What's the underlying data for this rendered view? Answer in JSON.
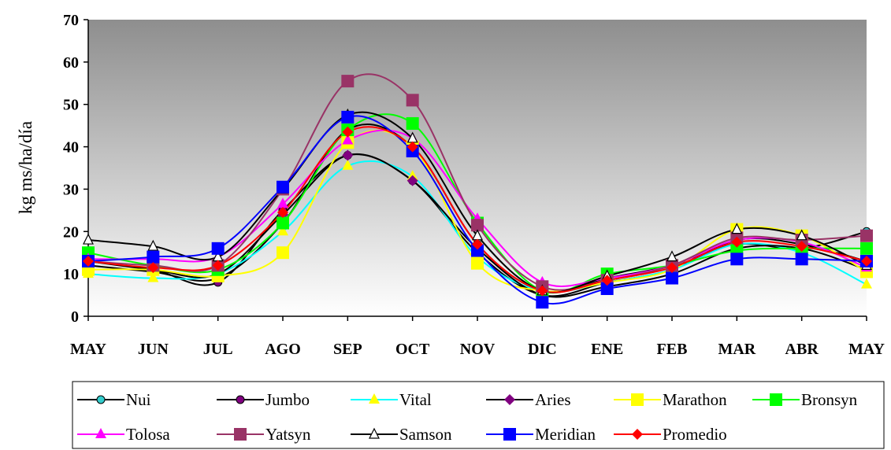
{
  "chart_data": {
    "type": "line",
    "title": "",
    "xlabel": "",
    "ylabel": "kg ms/ha/día",
    "ylim": [
      0,
      70
    ],
    "yticks": [
      0,
      10,
      20,
      30,
      40,
      50,
      60,
      70
    ],
    "grid": false,
    "legend_position": "bottom",
    "plot_background": "gradient gray (dark top to light bottom)",
    "categories": [
      "MAY",
      "JUN",
      "JUL",
      "AGO",
      "SEP",
      "OCT",
      "NOV",
      "DIC",
      "ENE",
      "FEB",
      "MAR",
      "ABR",
      "MAY"
    ],
    "series": [
      {
        "name": "Nui",
        "color": "#33cccc",
        "line_color": "#000000",
        "marker": "circle",
        "values": [
          12,
          10.5,
          9,
          22,
          44,
          40,
          17,
          6,
          9,
          12,
          17,
          16,
          20
        ]
      },
      {
        "name": "Jumbo",
        "color": "#800080",
        "line_color": "#000000",
        "marker": "circle",
        "values": [
          13,
          11,
          8,
          25,
          38,
          32,
          15,
          5,
          8,
          11,
          18,
          17,
          13
        ]
      },
      {
        "name": "Vital",
        "color": "#ffff00",
        "line_color": "#00ffff",
        "marker": "triangle",
        "values": [
          10,
          9,
          10,
          20,
          35.5,
          33,
          14,
          6,
          8,
          11,
          17,
          15,
          7.5
        ]
      },
      {
        "name": "Aries",
        "color": "#800080",
        "line_color": "#000000",
        "marker": "diamond",
        "values": [
          13,
          11,
          10,
          24,
          38,
          32,
          16,
          5,
          7,
          10,
          16,
          16,
          11
        ]
      },
      {
        "name": "Marathon",
        "color": "#ffff00",
        "line_color": "#ffff00",
        "marker": "square",
        "values": [
          11,
          11,
          9.5,
          15,
          41,
          40,
          12.5,
          6,
          8,
          11,
          20.5,
          19,
          10.5
        ]
      },
      {
        "name": "Bronsyn",
        "color": "#00ff00",
        "line_color": "#00ff00",
        "marker": "square",
        "values": [
          15,
          12,
          11,
          22,
          44,
          45.5,
          22,
          6,
          10,
          12,
          15.5,
          16,
          16
        ]
      },
      {
        "name": "Tolosa",
        "color": "#ff00ff",
        "line_color": "#ff00ff",
        "marker": "triangle",
        "values": [
          13.5,
          13.5,
          14,
          26.5,
          41.5,
          42,
          23,
          8,
          9,
          12,
          18,
          17.5,
          11.5
        ]
      },
      {
        "name": "Yatsyn",
        "color": "#993366",
        "line_color": "#993366",
        "marker": "square",
        "values": [
          13,
          12,
          12,
          30,
          55.5,
          51,
          21.5,
          7,
          8.5,
          12,
          18.5,
          18,
          19
        ]
      },
      {
        "name": "Samson",
        "color": "#ffffff",
        "line_color": "#000000",
        "marker": "triangle-open",
        "values": [
          18,
          16.5,
          14,
          30,
          47.5,
          42,
          19,
          6,
          9.5,
          14,
          20.5,
          19,
          12
        ]
      },
      {
        "name": "Meridian",
        "color": "#0000ff",
        "line_color": "#0000ff",
        "marker": "square",
        "values": [
          13,
          14,
          16,
          30.5,
          47,
          39,
          15.5,
          3.3,
          6.5,
          9,
          13.5,
          13.5,
          13
        ]
      },
      {
        "name": "Promedio",
        "color": "#ff0000",
        "line_color": "#ff0000",
        "marker": "diamond",
        "values": [
          13,
          11.5,
          12,
          24.5,
          43.5,
          40,
          17,
          6,
          8.5,
          11.5,
          17.5,
          16.5,
          13
        ]
      }
    ]
  }
}
